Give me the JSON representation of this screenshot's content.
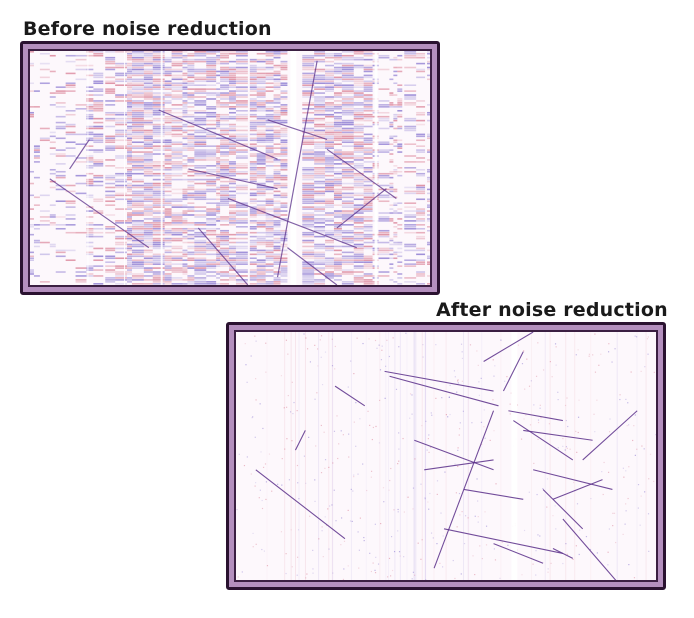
{
  "panels": {
    "before": {
      "caption": "Before noise reduction"
    },
    "after": {
      "caption": "After noise reduction"
    }
  },
  "colors": {
    "frame_fill": "#b48fbe",
    "frame_border": "#2a1230",
    "panel_bg": "#fdf8fc",
    "noise_blue": "#6b55c4",
    "noise_red": "#d0607a",
    "track": "#5a2f8a"
  }
}
